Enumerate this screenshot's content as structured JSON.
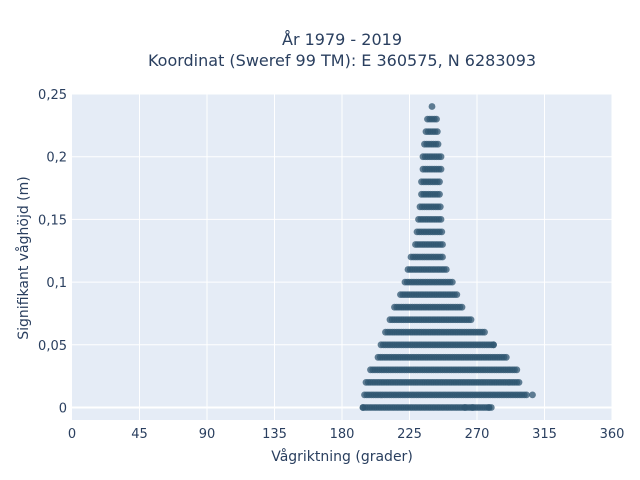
{
  "chart_data": {
    "type": "scatter",
    "title_lines": [
      "År 1979 - 2019",
      "Koordinat (Sweref 99 TM): E 360575, N 6283093"
    ],
    "xlabel": "Vågriktning (grader)",
    "ylabel": "Signifikant våghöjd (m)",
    "xlim": [
      0,
      360
    ],
    "ylim": [
      -0.01,
      0.25
    ],
    "xticks": [
      0,
      45,
      90,
      135,
      180,
      225,
      270,
      315,
      360
    ],
    "xtick_labels": [
      "0",
      "45",
      "90",
      "135",
      "180",
      "225",
      "270",
      "315",
      "360"
    ],
    "yticks": [
      0,
      0.05,
      0.1,
      0.15,
      0.2,
      0.25
    ],
    "ytick_labels": [
      "0",
      "0,05",
      "0,1",
      "0,15",
      "0,2",
      "0,25"
    ],
    "grid": true,
    "legend": "none",
    "marker_color": "#2f5570",
    "background_color": "#e5ecf6",
    "bands": [
      {
        "y": 0.0,
        "x_min": 194,
        "x_max": 280
      },
      {
        "y": 0.01,
        "x_min": 195,
        "x_max": 303
      },
      {
        "y": 0.02,
        "x_min": 196,
        "x_max": 299
      },
      {
        "y": 0.03,
        "x_min": 199,
        "x_max": 297
      },
      {
        "y": 0.04,
        "x_min": 204,
        "x_max": 290
      },
      {
        "y": 0.05,
        "x_min": 206,
        "x_max": 282
      },
      {
        "y": 0.06,
        "x_min": 209,
        "x_max": 276
      },
      {
        "y": 0.07,
        "x_min": 212,
        "x_max": 267
      },
      {
        "y": 0.08,
        "x_min": 215,
        "x_max": 260
      },
      {
        "y": 0.09,
        "x_min": 219,
        "x_max": 257
      },
      {
        "y": 0.1,
        "x_min": 222,
        "x_max": 254
      },
      {
        "y": 0.11,
        "x_min": 224,
        "x_max": 250
      },
      {
        "y": 0.12,
        "x_min": 226,
        "x_max": 248
      },
      {
        "y": 0.13,
        "x_min": 229,
        "x_max": 248
      },
      {
        "y": 0.14,
        "x_min": 230,
        "x_max": 247
      },
      {
        "y": 0.15,
        "x_min": 231,
        "x_max": 247
      },
      {
        "y": 0.16,
        "x_min": 232,
        "x_max": 246
      },
      {
        "y": 0.17,
        "x_min": 233,
        "x_max": 246
      },
      {
        "y": 0.18,
        "x_min": 233,
        "x_max": 246
      },
      {
        "y": 0.19,
        "x_min": 234,
        "x_max": 246
      },
      {
        "y": 0.2,
        "x_min": 234,
        "x_max": 246
      },
      {
        "y": 0.21,
        "x_min": 235,
        "x_max": 244
      },
      {
        "y": 0.22,
        "x_min": 236,
        "x_max": 244
      },
      {
        "y": 0.23,
        "x_min": 237,
        "x_max": 243
      },
      {
        "y": 0.24,
        "x_min": 240,
        "x_max": 241
      }
    ],
    "extra_points": [
      {
        "x": 194,
        "y": 0.0
      },
      {
        "x": 262,
        "y": 0.0
      },
      {
        "x": 267,
        "y": 0.0
      },
      {
        "x": 278,
        "y": 0.0
      },
      {
        "x": 307,
        "y": 0.01
      },
      {
        "x": 281,
        "y": 0.05
      }
    ]
  }
}
